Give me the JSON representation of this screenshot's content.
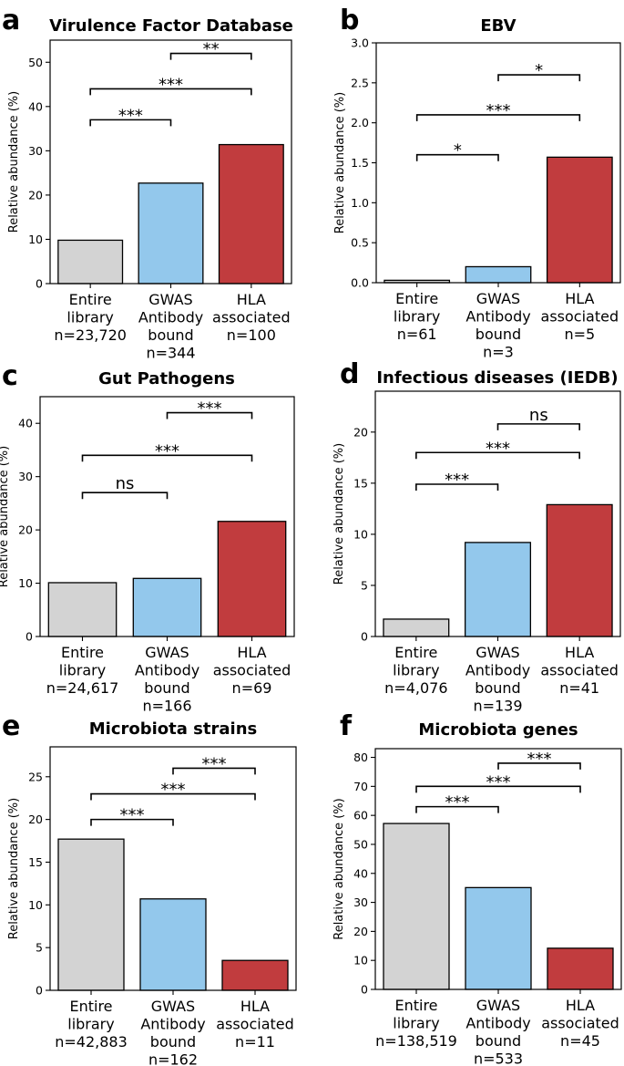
{
  "chart_data": [
    {
      "letter": "a",
      "type": "bar",
      "title": "Virulence Factor Database",
      "ylabel": "Relative abundance (%)",
      "ylim": [
        0,
        55
      ],
      "yticks": [
        0,
        10,
        20,
        30,
        40,
        50
      ],
      "categories": [
        {
          "lines": [
            "Entire",
            "library",
            "n=23,720"
          ]
        },
        {
          "lines": [
            "GWAS",
            "Antibody",
            "bound",
            "n=344"
          ]
        },
        {
          "lines": [
            "HLA",
            "associated",
            "n=100"
          ]
        }
      ],
      "values": [
        9.8,
        22.7,
        31.4
      ],
      "colors": [
        "#d3d3d3",
        "#93c8ec",
        "#c13c3e"
      ],
      "significance": [
        {
          "from": 0,
          "to": 1,
          "label": "***",
          "y": 37
        },
        {
          "from": 0,
          "to": 2,
          "label": "***",
          "y": 44
        },
        {
          "from": 1,
          "to": 2,
          "label": "**",
          "y": 52
        }
      ]
    },
    {
      "letter": "b",
      "type": "bar",
      "title": "EBV",
      "ylabel": "Relative abundance (%)",
      "ylim": [
        0,
        3.0
      ],
      "yticks": [
        0.0,
        0.5,
        1.0,
        1.5,
        2.0,
        2.5,
        3.0
      ],
      "tick_labels": [
        "0.0",
        "0.5",
        "1.0",
        "1.5",
        "2.0",
        "2.5",
        "3.0"
      ],
      "categories": [
        {
          "lines": [
            "Entire",
            "library",
            "n=61"
          ]
        },
        {
          "lines": [
            "GWAS",
            "Antibody",
            "bound",
            "n=3"
          ]
        },
        {
          "lines": [
            "HLA",
            "associated",
            "n=5"
          ]
        }
      ],
      "values": [
        0.03,
        0.2,
        1.57
      ],
      "colors": [
        "#d3d3d3",
        "#93c8ec",
        "#c13c3e"
      ],
      "significance": [
        {
          "from": 0,
          "to": 1,
          "label": "*",
          "y": 1.6
        },
        {
          "from": 0,
          "to": 2,
          "label": "***",
          "y": 2.1
        },
        {
          "from": 1,
          "to": 2,
          "label": "*",
          "y": 2.6
        }
      ]
    },
    {
      "letter": "c",
      "type": "bar",
      "title": "Gut Pathogens",
      "ylabel": "Relative abundance (%)",
      "ylim": [
        0,
        45
      ],
      "yticks": [
        0,
        10,
        20,
        30,
        40
      ],
      "categories": [
        {
          "lines": [
            "Entire",
            "library",
            "n=24,617"
          ]
        },
        {
          "lines": [
            "GWAS",
            "Antibody",
            "bound",
            "n=166"
          ]
        },
        {
          "lines": [
            "HLA",
            "associated",
            "n=69"
          ]
        }
      ],
      "values": [
        10.1,
        10.9,
        21.6
      ],
      "colors": [
        "#d3d3d3",
        "#93c8ec",
        "#c13c3e"
      ],
      "significance": [
        {
          "from": 0,
          "to": 1,
          "label": "ns",
          "y": 27
        },
        {
          "from": 0,
          "to": 2,
          "label": "***",
          "y": 34
        },
        {
          "from": 1,
          "to": 2,
          "label": "***",
          "y": 42
        }
      ]
    },
    {
      "letter": "d",
      "type": "bar",
      "title": "Infectious diseases (IEDB)",
      "ylabel": "Relative abundance (%)",
      "ylim": [
        0,
        24
      ],
      "yticks": [
        0,
        5,
        10,
        15,
        20
      ],
      "categories": [
        {
          "lines": [
            "Entire",
            "library",
            "n=4,076"
          ]
        },
        {
          "lines": [
            "GWAS",
            "Antibody",
            "bound",
            "n=139"
          ]
        },
        {
          "lines": [
            "HLA",
            "associated",
            "n=41"
          ]
        }
      ],
      "values": [
        1.7,
        9.2,
        12.9
      ],
      "colors": [
        "#d3d3d3",
        "#93c8ec",
        "#c13c3e"
      ],
      "significance": [
        {
          "from": 0,
          "to": 1,
          "label": "***",
          "y": 14.9
        },
        {
          "from": 0,
          "to": 2,
          "label": "***",
          "y": 18
        },
        {
          "from": 1,
          "to": 2,
          "label": "ns",
          "y": 20.8
        }
      ]
    },
    {
      "letter": "e",
      "type": "bar",
      "title": "Microbiota strains",
      "ylabel": "Relative abundance (%)",
      "ylim": [
        0,
        28.5
      ],
      "yticks": [
        0,
        5,
        10,
        15,
        20,
        25
      ],
      "categories": [
        {
          "lines": [
            "Entire",
            "library",
            "n=42,883"
          ]
        },
        {
          "lines": [
            "GWAS",
            "Antibody",
            "bound",
            "n=162"
          ]
        },
        {
          "lines": [
            "HLA",
            "associated",
            "n=11"
          ]
        }
      ],
      "values": [
        17.7,
        10.7,
        3.5
      ],
      "colors": [
        "#d3d3d3",
        "#93c8ec",
        "#c13c3e"
      ],
      "significance": [
        {
          "from": 0,
          "to": 1,
          "label": "***",
          "y": 20
        },
        {
          "from": 0,
          "to": 2,
          "label": "***",
          "y": 23
        },
        {
          "from": 1,
          "to": 2,
          "label": "***",
          "y": 26
        }
      ]
    },
    {
      "letter": "f",
      "type": "bar",
      "title": "Microbiota genes",
      "ylabel": "Relative abundance (%)",
      "ylim": [
        0,
        83
      ],
      "yticks": [
        0,
        10,
        20,
        30,
        40,
        50,
        60,
        70,
        80
      ],
      "categories": [
        {
          "lines": [
            "Entire",
            "library",
            "n=138,519"
          ]
        },
        {
          "lines": [
            "GWAS",
            "Antibody",
            "bound",
            "n=533"
          ]
        },
        {
          "lines": [
            "HLA",
            "associated",
            "n=45"
          ]
        }
      ],
      "values": [
        57.2,
        35.1,
        14.2
      ],
      "colors": [
        "#d3d3d3",
        "#93c8ec",
        "#c13c3e"
      ],
      "significance": [
        {
          "from": 0,
          "to": 1,
          "label": "***",
          "y": 63
        },
        {
          "from": 0,
          "to": 2,
          "label": "***",
          "y": 70
        },
        {
          "from": 1,
          "to": 2,
          "label": "***",
          "y": 78
        }
      ]
    }
  ]
}
